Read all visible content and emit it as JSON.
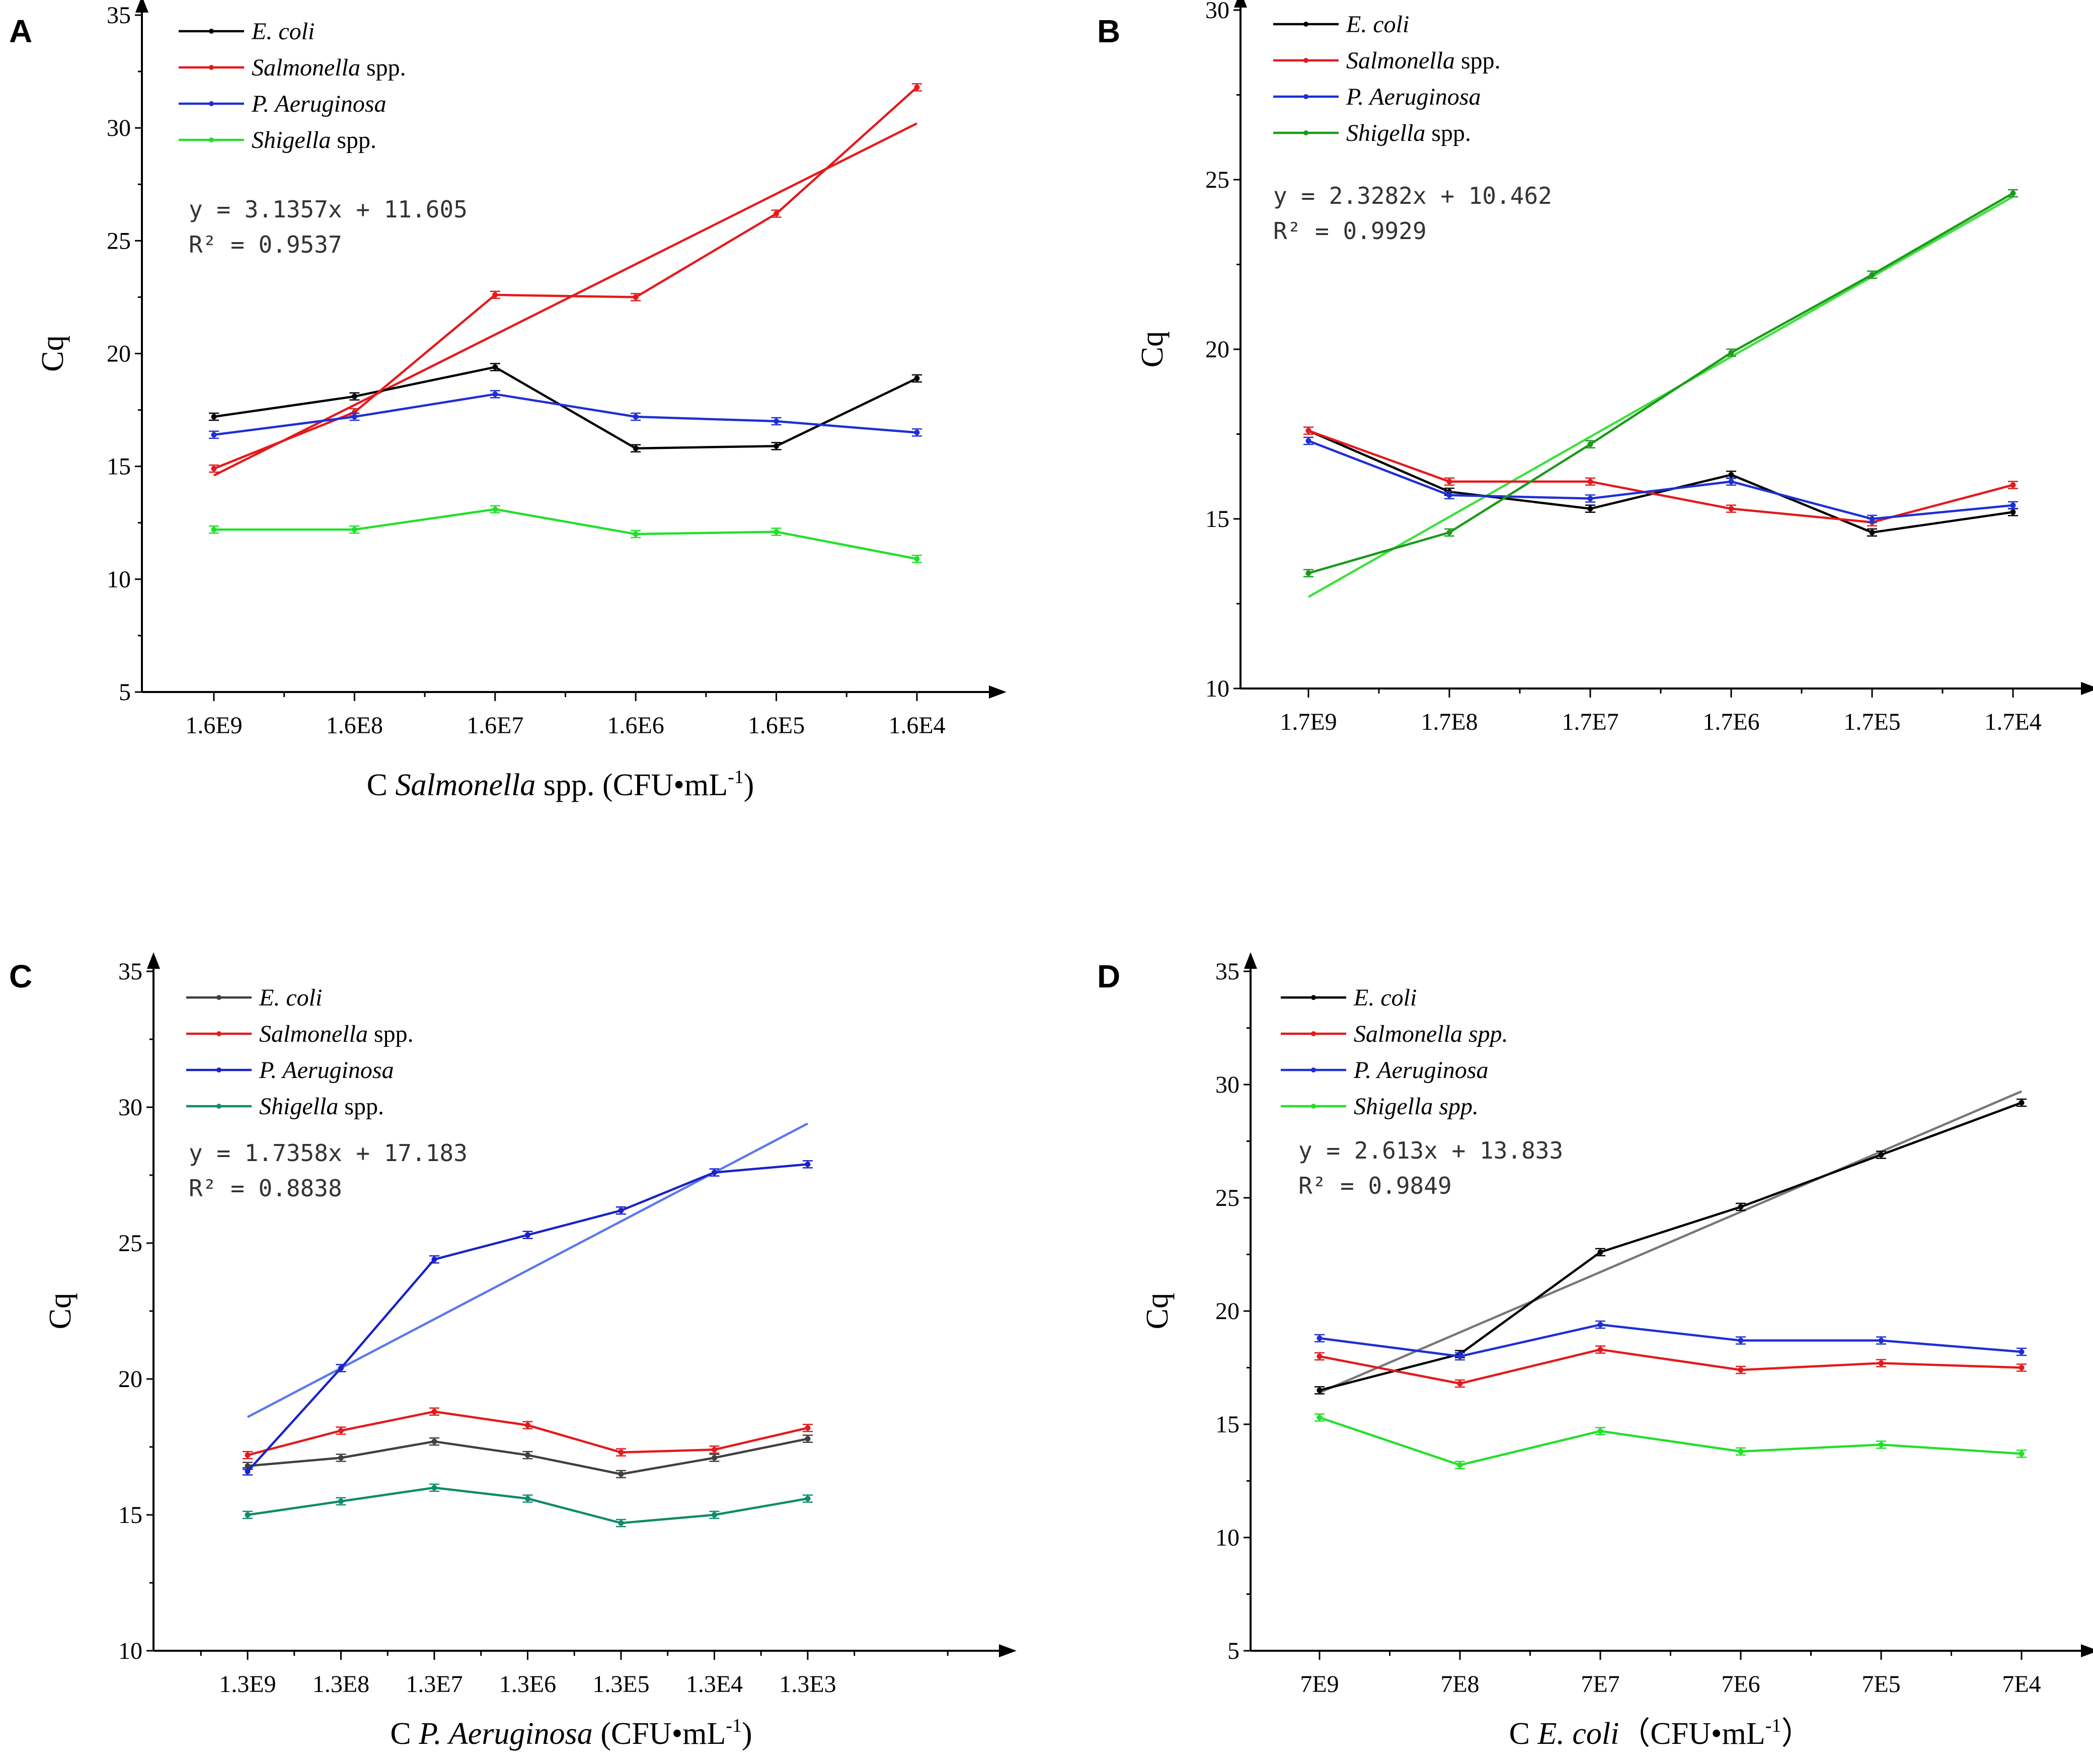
{
  "chart_data": [
    {
      "panel": "A",
      "type": "line",
      "categories": [
        "1.6E9",
        "1.6E8",
        "1.6E7",
        "1.6E6",
        "1.6E5",
        "1.6E4"
      ],
      "ylabel": "Cq",
      "xlabel": {
        "prefix": "C ",
        "italic": "Salmonella",
        "suffix": " spp. (CFU•mL",
        "sup": "-1",
        "end": ")"
      },
      "yticks": [
        5,
        10,
        15,
        20,
        25,
        30,
        35
      ],
      "ylim": [
        5,
        35
      ],
      "equation": "y = 3.1357x + 11.605",
      "r2": "R² = 0.9537",
      "series": [
        {
          "italic": "E. coli",
          "suffix": "",
          "color": "#000000",
          "values": [
            17.2,
            18.1,
            19.4,
            15.8,
            15.9,
            18.9
          ]
        },
        {
          "italic": "Salmonella",
          "suffix": " spp.",
          "color": "#e41a1c",
          "values": [
            14.9,
            17.4,
            22.6,
            22.5,
            26.2,
            31.8
          ]
        },
        {
          "italic": "P. Aeruginosa",
          "suffix": "",
          "color": "#1f2fd6",
          "values": [
            16.4,
            17.2,
            18.2,
            17.2,
            17.0,
            16.5
          ]
        },
        {
          "italic": "Shigella",
          "suffix": " spp.",
          "color": "#22e02a",
          "values": [
            12.2,
            12.2,
            13.1,
            12.0,
            12.1,
            10.9
          ]
        }
      ],
      "fit": {
        "color": "#e41a1c",
        "y_start": 14.6,
        "y_end": 30.2
      }
    },
    {
      "panel": "B",
      "type": "line",
      "categories": [
        "1.7E9",
        "1.7E8",
        "1.7E7",
        "1.7E6",
        "1.7E5",
        "1.7E4"
      ],
      "ylabel": "Cq",
      "yticks": [
        10,
        15,
        20,
        25,
        30
      ],
      "ylim": [
        10,
        30
      ],
      "equation": "y = 2.3282x + 10.462",
      "r2": "R² = 0.9929",
      "series": [
        {
          "italic": "E. coli",
          "suffix": "",
          "color": "#000000",
          "values": [
            17.6,
            15.8,
            15.3,
            16.3,
            14.6,
            15.2
          ]
        },
        {
          "italic": "Salmonella",
          "suffix": " spp.",
          "color": "#e41a1c",
          "values": [
            17.6,
            16.1,
            16.1,
            15.3,
            14.9,
            16.0
          ]
        },
        {
          "italic": "P. Aeruginosa",
          "suffix": "",
          "color": "#1f2fd6",
          "values": [
            17.3,
            15.7,
            15.6,
            16.1,
            15.0,
            15.4
          ]
        },
        {
          "italic": "Shigella",
          "suffix": " spp.",
          "color": "#1a9a1a",
          "values": [
            13.4,
            14.6,
            17.2,
            19.9,
            22.2,
            24.6
          ]
        }
      ],
      "fit": {
        "color": "#3ee03e",
        "y_start": 12.7,
        "y_end": 24.5
      }
    },
    {
      "panel": "C",
      "type": "line",
      "categories": [
        "1.3E9",
        "1.3E8",
        "1.3E7",
        "1.3E6",
        "1.3E5",
        "1.3E4",
        "1.3E3"
      ],
      "ylabel": "Cq",
      "xlabel": {
        "prefix": "C ",
        "italic": "P. Aeruginosa",
        "suffix": " (CFU•mL",
        "sup": "-1",
        "end": ")"
      },
      "yticks": [
        10,
        15,
        20,
        25,
        30,
        35
      ],
      "ylim": [
        10,
        35
      ],
      "equation": "y = 1.7358x + 17.183",
      "r2": "R² = 0.8838",
      "series": [
        {
          "italic": "E. coli",
          "suffix": "",
          "color": "#404040",
          "values": [
            16.8,
            17.1,
            17.7,
            17.2,
            16.5,
            17.1,
            17.8
          ]
        },
        {
          "italic": "Salmonella",
          "suffix": " spp.",
          "color": "#e41a1c",
          "values": [
            17.2,
            18.1,
            18.8,
            18.3,
            17.3,
            17.4,
            18.2
          ]
        },
        {
          "italic": "P. Aeruginosa",
          "suffix": "",
          "color": "#1a22c8",
          "values": [
            16.6,
            20.4,
            24.4,
            25.3,
            26.2,
            27.6,
            27.9
          ]
        },
        {
          "italic": "Shigella",
          "suffix": " spp.",
          "color": "#108c6a",
          "values": [
            15.0,
            15.5,
            16.0,
            15.6,
            14.7,
            15.0,
            15.6
          ]
        }
      ],
      "fit": {
        "color": "#5a78ee",
        "y_start": 18.6,
        "y_end": 29.4
      }
    },
    {
      "panel": "D",
      "type": "line",
      "categories": [
        "7E9",
        "7E8",
        "7E7",
        "7E6",
        "7E5",
        "7E4"
      ],
      "ylabel": "Cq",
      "xlabel": {
        "prefix": "C ",
        "italic": "E. coli",
        "suffix": "（CFU•mL",
        "sup": "-1",
        "end": "）"
      },
      "yticks": [
        5,
        10,
        15,
        20,
        25,
        30,
        35
      ],
      "ylim": [
        5,
        35
      ],
      "equation": "y = 2.613x + 13.833",
      "r2": "R² = 0.9849",
      "series": [
        {
          "italic": "E. coli",
          "suffix": "",
          "color": "#000000",
          "values": [
            16.5,
            18.1,
            22.6,
            24.6,
            26.9,
            29.2
          ]
        },
        {
          "italic": "Salmonella spp.",
          "suffix": "",
          "color": "#e41a1c",
          "values": [
            18.0,
            16.8,
            18.3,
            17.4,
            17.7,
            17.5
          ]
        },
        {
          "italic": "P. Aeruginosa",
          "suffix": "",
          "color": "#1f2fd6",
          "values": [
            18.8,
            18.0,
            19.4,
            18.7,
            18.7,
            18.2
          ]
        },
        {
          "italic": "Shigella spp.",
          "suffix": "",
          "color": "#22e02a",
          "values": [
            15.3,
            13.2,
            14.7,
            13.8,
            14.1,
            13.7
          ]
        }
      ],
      "fit": {
        "color": "#777777",
        "y_start": 16.4,
        "y_end": 29.7
      }
    }
  ]
}
